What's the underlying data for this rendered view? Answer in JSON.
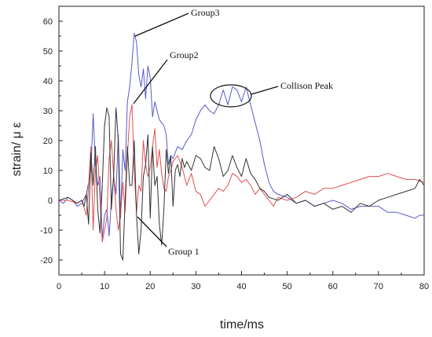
{
  "chart_data": {
    "type": "line",
    "title": "",
    "xlabel": "time/ms",
    "ylabel": "strain/ μ ε",
    "xlim": [
      0,
      80
    ],
    "ylim": [
      -25,
      65
    ],
    "xticks": [
      0,
      10,
      20,
      30,
      40,
      50,
      60,
      70,
      80
    ],
    "yticks": [
      -20,
      -10,
      0,
      10,
      20,
      30,
      40,
      50,
      60
    ],
    "grid": false,
    "legend": "none",
    "series": [
      {
        "color": "#5a5ac8",
        "x": [
          0,
          1,
          2,
          3,
          4,
          5,
          6,
          7,
          7.5,
          8,
          8.5,
          9,
          9.5,
          10,
          10.5,
          11,
          11.5,
          12,
          12.5,
          13,
          13.5,
          14,
          14.5,
          15,
          15.5,
          16,
          16.5,
          17,
          17.5,
          18,
          18.5,
          19,
          19.5,
          20,
          20.5,
          21,
          21.5,
          22,
          22.5,
          23,
          23.5,
          24,
          24.5,
          25,
          26,
          27,
          28,
          29,
          30,
          31,
          32,
          33,
          34,
          35,
          36,
          37,
          38,
          39,
          40,
          41,
          42,
          43,
          44,
          45,
          46,
          47,
          48,
          50,
          52,
          54,
          56,
          58,
          60,
          62,
          64,
          66,
          68,
          70,
          72,
          74,
          76,
          78,
          79,
          80
        ],
        "y": [
          0,
          -1,
          1,
          0,
          -2,
          -1,
          2,
          10,
          29,
          12,
          5,
          8,
          -13,
          -5,
          -3,
          -12,
          0,
          8,
          2,
          22,
          -6,
          17,
          10,
          33,
          38,
          46,
          56,
          53,
          42,
          38,
          44,
          34,
          45,
          41,
          28,
          33,
          30,
          27,
          26,
          25,
          22,
          12,
          15,
          14,
          18,
          17,
          20,
          22,
          27,
          30,
          32,
          30,
          29,
          32,
          37,
          32,
          38,
          37,
          33,
          38,
          32,
          26,
          20,
          12,
          6,
          3,
          2,
          1,
          -1,
          0,
          -2,
          -1,
          0,
          -1,
          -3,
          -2,
          -2,
          -2,
          -4,
          -4,
          -5,
          -6,
          -5,
          -5
        ]
      },
      {
        "color": "#e05050",
        "x": [
          0,
          2,
          4,
          5,
          6,
          6.5,
          7,
          7.5,
          8,
          8.5,
          9,
          9.5,
          10,
          10.5,
          11,
          11.5,
          12,
          12.5,
          13,
          13.5,
          14,
          14.5,
          15,
          15.5,
          16,
          16.5,
          17,
          17.5,
          18,
          18.5,
          19,
          19.5,
          20,
          20.5,
          21,
          21.5,
          22,
          22.5,
          23,
          23.5,
          24,
          24.5,
          25,
          26,
          27,
          28,
          29,
          30,
          31,
          32,
          33,
          34,
          35,
          36,
          37,
          38,
          39,
          40,
          41,
          42,
          43,
          44,
          45,
          46,
          47,
          48,
          50,
          52,
          54,
          56,
          58,
          60,
          62,
          64,
          66,
          68,
          70,
          72,
          74,
          76,
          78,
          80
        ],
        "y": [
          0,
          0,
          -1,
          0,
          -5,
          5,
          18,
          -10,
          10,
          15,
          0,
          -14,
          -10,
          -6,
          14,
          20,
          8,
          -3,
          -10,
          -5,
          6,
          -4,
          15,
          28,
          32,
          10,
          -4,
          5,
          3,
          20,
          12,
          8,
          11,
          18,
          24,
          11,
          17,
          9,
          4,
          3,
          8,
          10,
          13,
          15,
          11,
          5,
          9,
          3,
          2,
          -2,
          0,
          2,
          4,
          3,
          5,
          9,
          8,
          6,
          7,
          5,
          2,
          4,
          2,
          0,
          -2,
          1,
          0,
          1,
          3,
          2,
          4,
          4,
          5,
          6,
          7,
          8,
          8,
          9,
          8,
          7,
          7,
          6
        ]
      },
      {
        "color": "#333333",
        "x": [
          0,
          2,
          4,
          5,
          5.5,
          6,
          6.5,
          7,
          7.5,
          8,
          8.5,
          9,
          9.5,
          10,
          10.5,
          11,
          11.5,
          12,
          12.5,
          13,
          13.5,
          14,
          14.5,
          15,
          15.5,
          16,
          16.5,
          17,
          17.5,
          18,
          18.5,
          19,
          19.5,
          20,
          20.5,
          21,
          21.5,
          22,
          22.5,
          23,
          23.5,
          24,
          24.5,
          25,
          25.5,
          26,
          26.5,
          27,
          27.5,
          28,
          29,
          30,
          31,
          32,
          33,
          34,
          35,
          36,
          37,
          38,
          39,
          40,
          41,
          42,
          43,
          44,
          45,
          46,
          48,
          50,
          52,
          54,
          56,
          58,
          60,
          62,
          64,
          66,
          68,
          70,
          72,
          74,
          76,
          78,
          79,
          80
        ],
        "y": [
          0,
          1,
          -1,
          0,
          -2,
          2,
          -8,
          16,
          5,
          18,
          -3,
          -11,
          5,
          25,
          31,
          28,
          -3,
          9,
          31,
          20,
          -18,
          -20,
          0,
          18,
          5,
          5,
          20,
          -5,
          -18,
          -10,
          8,
          12,
          22,
          -6,
          18,
          5,
          8,
          -8,
          -15,
          -3,
          17,
          9,
          15,
          -2,
          10,
          12,
          8,
          14,
          11,
          13,
          10,
          15,
          14,
          11,
          10,
          18,
          14,
          8,
          10,
          15,
          11,
          8,
          14,
          9,
          7,
          4,
          3,
          1,
          0,
          2,
          -1,
          0,
          -2,
          -1,
          -3,
          -2,
          -4,
          -1,
          -2,
          0,
          1,
          2,
          3,
          4,
          7,
          5
        ]
      }
    ],
    "annotations": [
      {
        "text": "Group3"
      },
      {
        "text": "Group2"
      },
      {
        "text": "Collison Peak"
      },
      {
        "text": "Group 1"
      }
    ]
  }
}
